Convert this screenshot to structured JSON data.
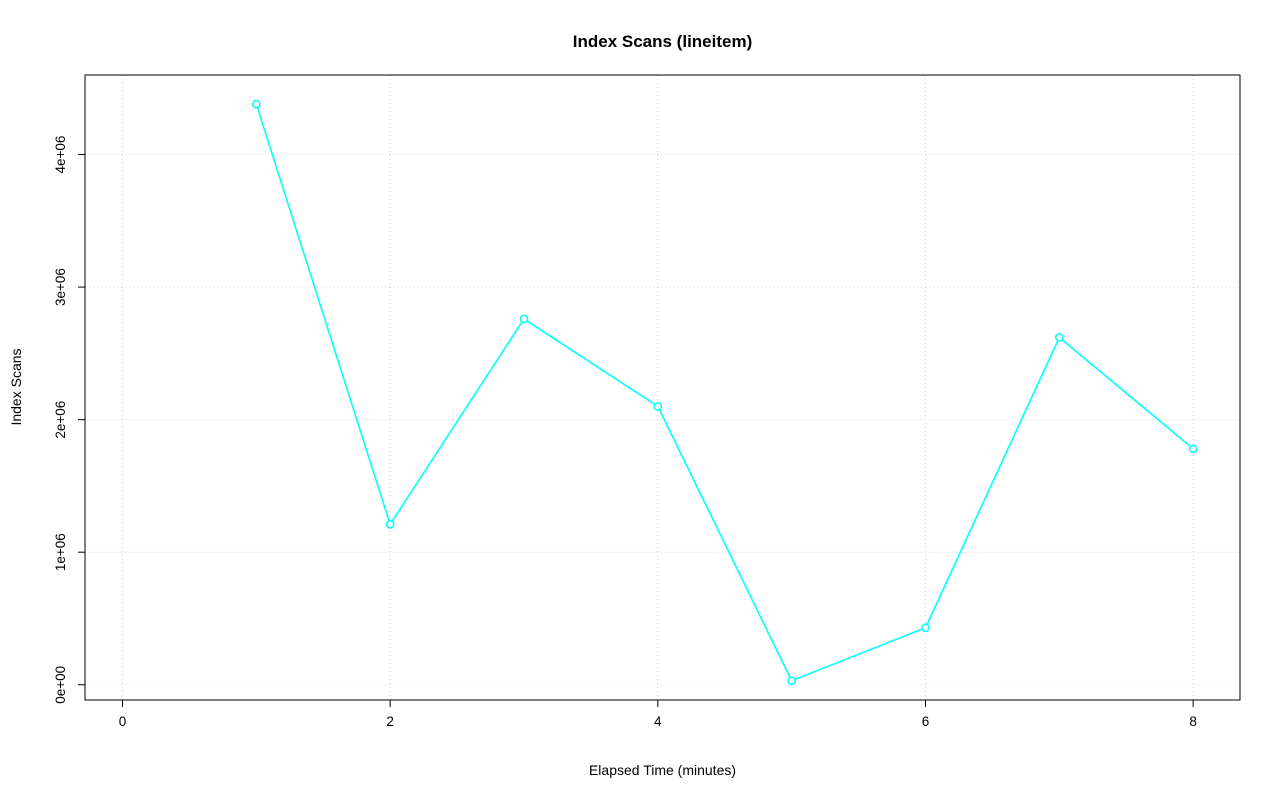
{
  "chart_data": {
    "type": "line",
    "title": "Index Scans (lineitem)",
    "xlabel": "Elapsed Time (minutes)",
    "ylabel": "Index Scans",
    "x": [
      1,
      2,
      3,
      4,
      5,
      6,
      7,
      8
    ],
    "series": [
      {
        "name": "index_scans",
        "values": [
          4380000,
          1210000,
          2760000,
          2100000,
          30000,
          430000,
          2620000,
          1780000
        ]
      }
    ],
    "xlim": [
      -0.28,
      8.35
    ],
    "ylim": [
      -115000,
      4600000
    ],
    "x_ticks": [
      0,
      2,
      4,
      6,
      8
    ],
    "x_tick_labels": [
      "0",
      "2",
      "4",
      "6",
      "8"
    ],
    "y_ticks": [
      0,
      1000000,
      2000000,
      3000000,
      4000000
    ],
    "y_tick_labels": [
      "0e+00",
      "1e+06",
      "2e+06",
      "3e+06",
      "4e+06"
    ],
    "grid": true,
    "legend": "none",
    "marker": "open-circle",
    "colors": {
      "line": "#00FFFF",
      "marker_fill": "#FFFFFF",
      "grid": "#D6D6D6",
      "axis": "#000000",
      "background": "#FFFFFF"
    }
  }
}
